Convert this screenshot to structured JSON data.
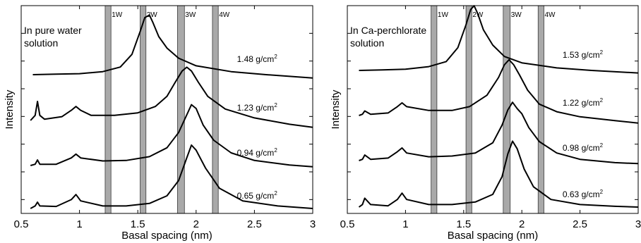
{
  "chart_data": [
    {
      "type": "line",
      "annotation": [
        "In pure water",
        "solution"
      ],
      "xlabel": "Basal spacing (nm)",
      "ylabel": "Intensity",
      "xlim": [
        0.5,
        3
      ],
      "xticks": [
        "0.5",
        "1",
        "1.5",
        "2",
        "2.5",
        "3"
      ],
      "hydration_bands": [
        {
          "label": "1W",
          "x": [
            1.22,
            1.27
          ]
        },
        {
          "label": "2W",
          "x": [
            1.52,
            1.57
          ]
        },
        {
          "label": "3W",
          "x": [
            1.84,
            1.9
          ]
        },
        {
          "label": "4W",
          "x": [
            2.14,
            2.19
          ]
        }
      ],
      "series": [
        {
          "label": "1.48 g/cm²",
          "label_parts": [
            "1.48 g/cm",
            "2"
          ],
          "baseline": 0.0,
          "tail": -0.13,
          "label_x": 2.35,
          "start": 0.6,
          "x": [
            0.6,
            0.8,
            1.0,
            1.2,
            1.35,
            1.45,
            1.52,
            1.56,
            1.6,
            1.63,
            1.68,
            1.75,
            1.85,
            2.0,
            2.3,
            2.6,
            3.0
          ],
          "y": [
            0.0,
            0.02,
            0.04,
            0.12,
            0.3,
            0.8,
            1.7,
            2.25,
            2.35,
            2.05,
            1.5,
            1.05,
            0.65,
            0.35,
            0.12,
            0.0,
            -0.13
          ]
        },
        {
          "label": "1.23 g/cm²",
          "label_parts": [
            "1.23 g/cm",
            "2"
          ],
          "baseline": 0.0,
          "tail": -0.27,
          "label_x": 2.35,
          "start": 0.58,
          "x": [
            0.58,
            0.62,
            0.64,
            0.66,
            0.7,
            0.85,
            0.93,
            0.97,
            1.01,
            1.1,
            1.3,
            1.5,
            1.65,
            1.75,
            1.82,
            1.88,
            1.92,
            1.96,
            2.02,
            2.1,
            2.25,
            2.5,
            2.8,
            3.0
          ],
          "y": [
            0.0,
            0.2,
            0.75,
            0.2,
            0.05,
            0.15,
            0.4,
            0.55,
            0.4,
            0.2,
            0.2,
            0.3,
            0.55,
            0.95,
            1.5,
            1.95,
            2.1,
            1.95,
            1.5,
            0.95,
            0.45,
            0.1,
            -0.15,
            -0.27
          ]
        },
        {
          "label": "0.94 g/cm²",
          "label_parts": [
            "0.94 g/cm",
            "2"
          ],
          "baseline": 0.0,
          "tail": -0.05,
          "label_x": 2.35,
          "start": 0.58,
          "x": [
            0.58,
            0.62,
            0.64,
            0.66,
            0.8,
            0.93,
            0.97,
            1.01,
            1.2,
            1.4,
            1.6,
            1.75,
            1.85,
            1.92,
            1.96,
            2.0,
            2.06,
            2.15,
            2.3,
            2.5,
            2.8,
            3.0
          ],
          "y": [
            0.0,
            0.05,
            0.22,
            0.05,
            0.05,
            0.3,
            0.45,
            0.3,
            0.18,
            0.2,
            0.35,
            0.7,
            1.3,
            2.0,
            2.4,
            2.25,
            1.6,
            1.0,
            0.5,
            0.2,
            0.02,
            -0.05
          ]
        },
        {
          "label": "0.65 g/cm²",
          "label_parts": [
            "0.65 g/cm",
            "2"
          ],
          "baseline": 0.0,
          "tail": 0.0,
          "label_x": 2.35,
          "start": 0.58,
          "x": [
            0.58,
            0.62,
            0.64,
            0.66,
            0.8,
            0.93,
            0.97,
            1.01,
            1.2,
            1.4,
            1.6,
            1.75,
            1.85,
            1.92,
            1.96,
            2.0,
            2.08,
            2.2,
            2.4,
            2.7,
            3.0
          ],
          "y": [
            0.0,
            0.1,
            0.25,
            0.1,
            0.08,
            0.35,
            0.55,
            0.3,
            0.1,
            0.1,
            0.2,
            0.5,
            1.1,
            2.0,
            2.5,
            2.3,
            1.6,
            0.8,
            0.3,
            0.1,
            0.0
          ]
        }
      ]
    },
    {
      "type": "line",
      "annotation": [
        "In Ca-perchlorate",
        "solution"
      ],
      "xlabel": "Basal spacing (nm)",
      "ylabel": "Intensity",
      "xlim": [
        0.5,
        3
      ],
      "xticks": [
        "0.5",
        "1",
        "1.5",
        "2",
        "2.5",
        "3"
      ],
      "hydration_bands": [
        {
          "label": "1W",
          "x": [
            1.22,
            1.27
          ]
        },
        {
          "label": "2W",
          "x": [
            1.52,
            1.57
          ]
        },
        {
          "label": "3W",
          "x": [
            1.84,
            1.9
          ]
        },
        {
          "label": "4W",
          "x": [
            2.14,
            2.19
          ]
        }
      ],
      "series": [
        {
          "label": "1.53 g/cm²",
          "label_parts": [
            "1.53 g/cm",
            "2"
          ],
          "baseline": 0.0,
          "tail": -0.1,
          "label_x": 2.35,
          "start": 0.6,
          "x": [
            0.6,
            0.8,
            1.0,
            1.2,
            1.35,
            1.45,
            1.52,
            1.56,
            1.59,
            1.62,
            1.67,
            1.75,
            1.85,
            2.0,
            2.3,
            2.6,
            3.0
          ],
          "y": [
            0.0,
            0.02,
            0.05,
            0.15,
            0.35,
            0.9,
            1.8,
            2.4,
            2.55,
            2.25,
            1.6,
            1.0,
            0.55,
            0.3,
            0.1,
            0.0,
            -0.1
          ]
        },
        {
          "label": "1.22 g/cm²",
          "label_parts": [
            "1.22 g/cm",
            "2"
          ],
          "baseline": 0.0,
          "tail": -0.3,
          "label_x": 2.35,
          "start": 0.6,
          "x": [
            0.6,
            0.63,
            0.65,
            0.7,
            0.85,
            0.93,
            0.97,
            1.01,
            1.2,
            1.4,
            1.55,
            1.7,
            1.8,
            1.85,
            1.89,
            1.93,
            1.98,
            2.05,
            2.15,
            2.3,
            2.5,
            2.8,
            3.0
          ],
          "y": [
            0.0,
            0.05,
            0.18,
            0.05,
            0.1,
            0.35,
            0.5,
            0.35,
            0.2,
            0.2,
            0.35,
            0.8,
            1.5,
            2.0,
            2.2,
            2.0,
            1.6,
            1.0,
            0.45,
            0.15,
            -0.05,
            -0.2,
            -0.3
          ]
        },
        {
          "label": "0.98 g/cm²",
          "label_parts": [
            "0.98 g/cm",
            "2"
          ],
          "baseline": 0.0,
          "tail": -0.12,
          "label_x": 2.35,
          "start": 0.6,
          "x": [
            0.6,
            0.63,
            0.65,
            0.7,
            0.85,
            0.93,
            0.97,
            1.01,
            1.2,
            1.4,
            1.6,
            1.75,
            1.83,
            1.88,
            1.92,
            1.96,
            2.0,
            2.06,
            2.15,
            2.3,
            2.5,
            2.8,
            3.0
          ],
          "y": [
            0.0,
            0.05,
            0.22,
            0.05,
            0.1,
            0.35,
            0.5,
            0.3,
            0.15,
            0.18,
            0.3,
            0.7,
            1.4,
            2.0,
            2.3,
            2.05,
            1.85,
            1.3,
            0.75,
            0.3,
            0.05,
            -0.08,
            -0.12
          ]
        },
        {
          "label": "0.63 g/cm²",
          "label_parts": [
            "0.63 g/cm",
            "2"
          ],
          "baseline": 0.0,
          "tail": 0.0,
          "label_x": 2.35,
          "start": 0.6,
          "x": [
            0.6,
            0.63,
            0.65,
            0.7,
            0.85,
            0.93,
            0.97,
            1.01,
            1.2,
            1.4,
            1.6,
            1.75,
            1.83,
            1.88,
            1.92,
            1.96,
            2.02,
            2.1,
            2.25,
            2.5,
            2.8,
            3.0
          ],
          "y": [
            0.0,
            0.1,
            0.35,
            0.1,
            0.05,
            0.3,
            0.55,
            0.3,
            0.1,
            0.1,
            0.2,
            0.5,
            1.2,
            2.1,
            2.6,
            2.3,
            1.5,
            0.8,
            0.3,
            0.1,
            0.03,
            0.0
          ]
        }
      ]
    }
  ]
}
